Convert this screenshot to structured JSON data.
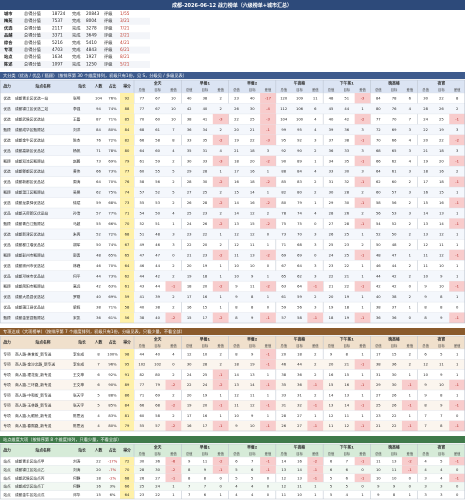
{
  "title": "成都-2026-06-12 战力榜单（六级榜单+城市汇总）",
  "summary": [
    [
      "城市",
      "总得分值",
      "18724",
      "完成",
      "20843",
      "评级",
      "1/55"
    ],
    [
      "梅苑",
      "总得分值",
      "7537",
      "完成",
      "8004",
      "评级",
      "3/21"
    ],
    [
      "优选",
      "总得分值",
      "2117",
      "完成",
      "3278",
      "评级",
      "7/21"
    ],
    [
      "品越",
      "总得分值",
      "3371",
      "完成",
      "3649",
      "评级",
      "2/21"
    ],
    [
      "综合",
      "总得分值",
      "5216",
      "完成",
      "5410",
      "评级",
      "4/21"
    ],
    [
      "专项",
      "总得分值",
      "4703",
      "完成",
      "4843",
      "评级",
      "6/21"
    ],
    [
      "站点",
      "总得分值",
      "1634",
      "完成",
      "1927",
      "评级",
      "8/21"
    ],
    [
      "陈述",
      "总得分值",
      "1097",
      "完成",
      "1250",
      "评级",
      "5/21"
    ]
  ],
  "tables": [
    {
      "title": "大分类（优选 / 优品 / 甄顾）（按排序第 30 个维度排列，初级只有1份，见 S，分级见 / 多级见表）",
      "left_headers": [
        "战力",
        "站点名称",
        "站长",
        "人数",
        "占比",
        "得分"
      ],
      "groups": [
        "全天",
        "早餐1",
        "早餐2",
        "午高峰",
        "下午茶1",
        "晚高峰",
        "夜宵"
      ],
      "subs": [
        "总值",
        "目标",
        "差值"
      ],
      "rows": [
        [
          "优选",
          "成都青羊区优选一站",
          "张明",
          "104",
          "76%",
          "92",
          "77",
          "67",
          "10",
          "40",
          "38",
          "2",
          "23",
          "40",
          "-17",
          "120",
          "109",
          "11",
          "48",
          "51",
          "-3",
          "84",
          "78",
          "6",
          "30",
          "22",
          "8"
        ],
        [
          "优选",
          "成都锦江区优选二站",
          "李强",
          "94",
          "74%",
          "88",
          "77",
          "67",
          "10",
          "42",
          "40",
          "2",
          "26",
          "30",
          "-4",
          "112",
          "106",
          "6",
          "45",
          "44",
          "1",
          "80",
          "76",
          "4",
          "28",
          "26",
          "2"
        ],
        [
          "优选",
          "成都武侯区优选站",
          "王磊",
          "87",
          "71%",
          "85",
          "70",
          "60",
          "10",
          "38",
          "41",
          "-3",
          "22",
          "25",
          "-3",
          "104",
          "100",
          "4",
          "40",
          "42",
          "-2",
          "77",
          "70",
          "7",
          "24",
          "25",
          "-1"
        ],
        [
          "甄顾",
          "成都成华区甄顾站",
          "刘洋",
          "84",
          "80%",
          "84",
          "68",
          "61",
          "7",
          "36",
          "34",
          "2",
          "20",
          "21",
          "-1",
          "99",
          "95",
          "4",
          "39",
          "36",
          "3",
          "72",
          "69",
          "3",
          "22",
          "19",
          "3"
        ],
        [
          "优选",
          "成都金牛区优选站",
          "陈杰",
          "76",
          "72%",
          "82",
          "66",
          "58",
          "8",
          "33",
          "35",
          "-2",
          "19",
          "22",
          "-3",
          "95",
          "92",
          "3",
          "37",
          "38",
          "-1",
          "70",
          "66",
          "4",
          "20",
          "22",
          "-2"
        ],
        [
          "优品",
          "成都高新区优品站",
          "杨帆",
          "71",
          "78%",
          "80",
          "64",
          "60",
          "4",
          "35",
          "31",
          "4",
          "21",
          "18",
          "3",
          "92",
          "90",
          "2",
          "36",
          "33",
          "3",
          "68",
          "65",
          "3",
          "21",
          "18",
          "3"
        ],
        [
          "甄顾",
          "成都双流区甄顾站",
          "赵鹏",
          "73",
          "69%",
          "79",
          "61",
          "59",
          "2",
          "30",
          "33",
          "-3",
          "18",
          "20",
          "-2",
          "90",
          "89",
          "1",
          "34",
          "35",
          "-1",
          "66",
          "62",
          "4",
          "19",
          "20",
          "-1"
        ],
        [
          "优选",
          "成都郫都区优选站",
          "黄伟",
          "66",
          "73%",
          "77",
          "60",
          "55",
          "5",
          "29",
          "28",
          "1",
          "17",
          "16",
          "1",
          "88",
          "84",
          "4",
          "33",
          "30",
          "3",
          "64",
          "61",
          "3",
          "18",
          "16",
          "2"
        ],
        [
          "优品",
          "成都新都区优品站",
          "周涛",
          "64",
          "70%",
          "76",
          "58",
          "56",
          "2",
          "28",
          "30",
          "-2",
          "16",
          "18",
          "-2",
          "85",
          "83",
          "2",
          "31",
          "32",
          "-1",
          "62",
          "60",
          "2",
          "17",
          "18",
          "-1"
        ],
        [
          "甄顾",
          "成都温江区甄顾站",
          "吴昊",
          "62",
          "75%",
          "74",
          "57",
          "52",
          "5",
          "27",
          "25",
          "2",
          "15",
          "14",
          "1",
          "82",
          "80",
          "2",
          "30",
          "28",
          "2",
          "60",
          "57",
          "3",
          "16",
          "15",
          "1"
        ],
        [
          "优选",
          "成都龙泉驿优选站",
          "徐斌",
          "59",
          "68%",
          "73",
          "55",
          "53",
          "2",
          "26",
          "28",
          "-2",
          "14",
          "16",
          "-2",
          "80",
          "79",
          "1",
          "29",
          "30",
          "-1",
          "58",
          "56",
          "2",
          "15",
          "16",
          "-1"
        ],
        [
          "优品",
          "成都天府新区优品站",
          "孙浩",
          "57",
          "77%",
          "71",
          "54",
          "50",
          "4",
          "25",
          "23",
          "2",
          "14",
          "12",
          "2",
          "78",
          "74",
          "4",
          "28",
          "26",
          "2",
          "56",
          "53",
          "3",
          "14",
          "13",
          "1"
        ],
        [
          "甄顾",
          "成都青白江甄顾站",
          "马超",
          "55",
          "66%",
          "70",
          "52",
          "51",
          "1",
          "24",
          "26",
          "-2",
          "13",
          "15",
          "-2",
          "75",
          "75",
          "0",
          "27",
          "28",
          "-1",
          "54",
          "52",
          "2",
          "13",
          "14",
          "-1"
        ],
        [
          "优选",
          "成都新津区优选站",
          "朱亮",
          "52",
          "72%",
          "68",
          "51",
          "48",
          "3",
          "23",
          "22",
          "1",
          "12",
          "12",
          "0",
          "73",
          "70",
          "3",
          "26",
          "25",
          "1",
          "52",
          "50",
          "2",
          "13",
          "12",
          "1"
        ],
        [
          "优品",
          "成都都江堰优品站",
          "胡军",
          "50",
          "74%",
          "67",
          "49",
          "46",
          "3",
          "22",
          "20",
          "2",
          "12",
          "11",
          "1",
          "71",
          "68",
          "3",
          "25",
          "23",
          "2",
          "50",
          "48",
          "2",
          "12",
          "11",
          "1"
        ],
        [
          "甄顾",
          "成都彭州市甄顾站",
          "郭勇",
          "48",
          "65%",
          "65",
          "47",
          "47",
          "0",
          "21",
          "23",
          "-2",
          "11",
          "13",
          "-2",
          "69",
          "69",
          "0",
          "24",
          "25",
          "-1",
          "48",
          "47",
          "1",
          "11",
          "12",
          "-1"
        ],
        [
          "优选",
          "成都崇州市优选站",
          "林峰",
          "46",
          "70%",
          "64",
          "46",
          "44",
          "2",
          "20",
          "19",
          "1",
          "10",
          "10",
          "0",
          "67",
          "64",
          "3",
          "23",
          "22",
          "1",
          "46",
          "44",
          "2",
          "11",
          "10",
          "1"
        ],
        [
          "优品",
          "成都邛崃市优品站",
          "何平",
          "44",
          "73%",
          "62",
          "44",
          "42",
          "2",
          "19",
          "18",
          "1",
          "10",
          "9",
          "1",
          "65",
          "62",
          "3",
          "22",
          "21",
          "1",
          "44",
          "42",
          "2",
          "10",
          "9",
          "1"
        ],
        [
          "甄顾",
          "成都简阳市甄顾站",
          "高远",
          "42",
          "63%",
          "61",
          "43",
          "44",
          "-1",
          "18",
          "20",
          "-2",
          "9",
          "11",
          "-2",
          "63",
          "64",
          "-1",
          "21",
          "22",
          "-1",
          "42",
          "42",
          "0",
          "9",
          "10",
          "-1"
        ],
        [
          "优选",
          "成都大邑县优选站",
          "罗刚",
          "40",
          "69%",
          "59",
          "41",
          "39",
          "2",
          "17",
          "16",
          "1",
          "9",
          "8",
          "1",
          "61",
          "59",
          "2",
          "20",
          "19",
          "1",
          "40",
          "38",
          "2",
          "9",
          "8",
          "1"
        ],
        [
          "优品",
          "成都蒲江县优品站",
          "梁辉",
          "38",
          "71%",
          "58",
          "40",
          "38",
          "2",
          "16",
          "15",
          "1",
          "8",
          "8",
          "0",
          "59",
          "56",
          "3",
          "19",
          "18",
          "1",
          "38",
          "37",
          "1",
          "8",
          "8",
          "0"
        ],
        [
          "甄顾",
          "成都金堂县甄顾站",
          "宋凯",
          "36",
          "61%",
          "56",
          "38",
          "40",
          "-2",
          "15",
          "17",
          "-2",
          "8",
          "9",
          "-1",
          "57",
          "58",
          "-1",
          "18",
          "19",
          "-1",
          "36",
          "36",
          "0",
          "8",
          "9",
          "-1"
        ]
      ]
    },
    {
      "title": "专项达成（大项榜单）（按排序第 7 个维度排列，初级只有1份，分级见表，只看少量，不看全部）",
      "left_headers": [
        "战力",
        "站点名称",
        "站长",
        "人数",
        "占比",
        "得分"
      ],
      "groups": [
        "全天",
        "早餐1",
        "早餐2",
        "午高峰",
        "下午茶1",
        "晚高峰",
        "夜宵"
      ],
      "subs": [
        "总值",
        "目标",
        "差值"
      ],
      "rows": [
        [
          "专项",
          "商人路-美食街_新专送",
          "李东成",
          "8",
          "100%",
          "98",
          "44",
          "40",
          "4",
          "12",
          "10",
          "2",
          "8",
          "9",
          "-1",
          "20",
          "18",
          "2",
          "9",
          "8",
          "1",
          "17",
          "15",
          "2",
          "6",
          "5",
          "1"
        ],
        [
          "专项",
          "商人路-金沙北路_新专送",
          "李东成",
          "7",
          "96%",
          "95",
          "102",
          "102",
          "0",
          "30",
          "28",
          "2",
          "18",
          "19",
          "-1",
          "46",
          "44",
          "2",
          "20",
          "21",
          "-1",
          "38",
          "36",
          "2",
          "12",
          "11",
          "1"
        ],
        [
          "专项",
          "商人路-理花街_新专送",
          "王文坤",
          "6",
          "92%",
          "91",
          "82",
          "80",
          "2",
          "24",
          "25",
          "-1",
          "14",
          "13",
          "1",
          "38",
          "36",
          "2",
          "16",
          "15",
          "1",
          "31",
          "30",
          "1",
          "10",
          "9",
          "1"
        ],
        [
          "专项",
          "商人路-三环路_新专送",
          "王文坤",
          "6",
          "90%",
          "89",
          "77",
          "79",
          "-2",
          "22",
          "24",
          "-2",
          "13",
          "14",
          "-1",
          "35",
          "36",
          "-1",
          "15",
          "16",
          "-1",
          "29",
          "30",
          "-1",
          "9",
          "10",
          "-1"
        ],
        [
          "专项",
          "商人路-中和街_新专送",
          "张天宇",
          "5",
          "88%",
          "86",
          "71",
          "69",
          "2",
          "20",
          "19",
          "1",
          "12",
          "11",
          "1",
          "33",
          "31",
          "2",
          "14",
          "13",
          "1",
          "27",
          "26",
          "1",
          "9",
          "8",
          "1"
        ],
        [
          "专项",
          "商人路-玉林路_新专送",
          "张天宇",
          "5",
          "85%",
          "84",
          "66",
          "68",
          "-2",
          "19",
          "20",
          "-1",
          "11",
          "12",
          "-1",
          "31",
          "32",
          "-1",
          "13",
          "14",
          "-1",
          "25",
          "26",
          "-1",
          "8",
          "9",
          "-1"
        ],
        [
          "专项",
          "商人路-九眼桥_新专送",
          "陈思远",
          "4",
          "83%",
          "81",
          "60",
          "58",
          "2",
          "17",
          "16",
          "1",
          "10",
          "9",
          "1",
          "28",
          "27",
          "1",
          "12",
          "11",
          "1",
          "23",
          "22",
          "1",
          "7",
          "7",
          "0"
        ],
        [
          "专项",
          "商人路-春熙路_新专送",
          "陈思远",
          "4",
          "80%",
          "79",
          "55",
          "57",
          "-2",
          "16",
          "17",
          "-1",
          "9",
          "10",
          "-1",
          "26",
          "27",
          "-1",
          "11",
          "12",
          "-1",
          "21",
          "22",
          "-1",
          "7",
          "8",
          "-1"
        ]
      ]
    },
    {
      "title": "站点维度大项（按排序第 8 个维度排列，只看少量，不看全部）",
      "left_headers": [
        "战力",
        "站点名称",
        "站长",
        "人数",
        "占比",
        "得分"
      ],
      "groups": [
        "全天",
        "早餐1",
        "早餐2",
        "午高峰",
        "下午茶1",
        "晚高峰",
        "夜宵"
      ],
      "subs": [
        "总值",
        "目标",
        "差值"
      ],
      "rows": [
        [
          "站点",
          "成都青羊区站点甲",
          "刘涛",
          "22",
          "-17%",
          "72",
          "30",
          "36",
          "-6",
          "9",
          "11",
          "-2",
          "6",
          "7",
          "-1",
          "14",
          "16",
          "-2",
          "6",
          "7",
          "-1",
          "11",
          "13",
          "-2",
          "4",
          "5",
          "-1"
        ],
        [
          "站点",
          "成都锦江区站点乙",
          "刘涛",
          "20",
          "-7%",
          "70",
          "28",
          "30",
          "-2",
          "8",
          "9",
          "-1",
          "5",
          "6",
          "-1",
          "13",
          "14",
          "-1",
          "6",
          "6",
          "0",
          "10",
          "11",
          "-1",
          "4",
          "4",
          "0"
        ],
        [
          "站点",
          "成都武侯区站点丙",
          "何静",
          "18",
          "-2%",
          "68",
          "26",
          "27",
          "-1",
          "8",
          "8",
          "0",
          "5",
          "5",
          "0",
          "12",
          "13",
          "-1",
          "5",
          "6",
          "-1",
          "10",
          "10",
          "0",
          "3",
          "4",
          "-1"
        ],
        [
          "站点",
          "成都成华区站点丁",
          "何静",
          "16",
          "3%",
          "66",
          "25",
          "24",
          "1",
          "7",
          "7",
          "0",
          "4",
          "4",
          "0",
          "12",
          "11",
          "1",
          "5",
          "5",
          "0",
          "9",
          "9",
          "0",
          "3",
          "3",
          "0"
        ],
        [
          "站点",
          "成都金牛区站点戊",
          "邓华",
          "15",
          "6%",
          "64",
          "23",
          "22",
          "1",
          "7",
          "6",
          "1",
          "4",
          "4",
          "0",
          "11",
          "10",
          "1",
          "5",
          "4",
          "1",
          "9",
          "8",
          "1",
          "3",
          "3",
          "0"
        ]
      ]
    }
  ]
}
